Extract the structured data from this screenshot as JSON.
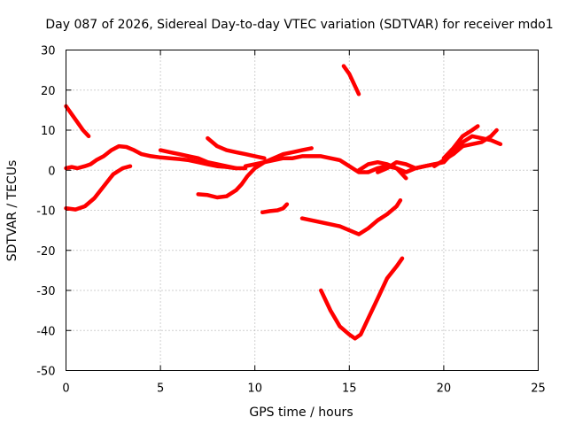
{
  "chart_data": {
    "type": "line",
    "title": "Day 087 of 2026, Sidereal Day-to-day VTEC variation (SDTVAR) for receiver mdo1",
    "xlabel": "GPS time / hours",
    "ylabel": "SDTVAR / TECUs",
    "xlim": [
      0,
      25
    ],
    "ylim": [
      -50,
      30
    ],
    "xticks": [
      0,
      5,
      10,
      15,
      20,
      25
    ],
    "yticks": [
      30,
      20,
      10,
      0,
      -10,
      -20,
      -30,
      -40,
      -50
    ],
    "grid": true,
    "color": "#ff0000",
    "series": [
      {
        "x": [
          0.0,
          0.3,
          0.6,
          0.9,
          1.2
        ],
        "y": [
          16,
          14,
          12,
          10,
          8.5
        ]
      },
      {
        "x": [
          0.0,
          0.3,
          0.6,
          1.0,
          1.3,
          1.6,
          2.0,
          2.4,
          2.8,
          3.2,
          3.6,
          4.0,
          4.5,
          5.0,
          5.5,
          6.0,
          6.5,
          7.0,
          7.5,
          8.0,
          8.5,
          9.0,
          9.5
        ],
        "y": [
          0.5,
          0.8,
          0.5,
          1.0,
          1.5,
          2.5,
          3.5,
          5.0,
          6.0,
          5.8,
          5.0,
          4.0,
          3.5,
          3.2,
          3.0,
          2.8,
          2.5,
          2.0,
          1.5,
          1.0,
          0.8,
          0.5,
          0.5
        ]
      },
      {
        "x": [
          0.0,
          0.5,
          1.0,
          1.5,
          2.0,
          2.5,
          3.0,
          3.4
        ],
        "y": [
          -9.5,
          -9.8,
          -9.0,
          -7.0,
          -4.0,
          -1.0,
          0.5,
          1.0
        ]
      },
      {
        "x": [
          5.0,
          5.5,
          6.0,
          6.5,
          7.0,
          7.5,
          8.0,
          8.5,
          9.0
        ],
        "y": [
          5.0,
          4.5,
          4.0,
          3.5,
          3.0,
          2.0,
          1.5,
          1.0,
          0.5
        ]
      },
      {
        "x": [
          7.5,
          8.0,
          8.5,
          9.0,
          9.5,
          10.0,
          10.5
        ],
        "y": [
          8.0,
          6.0,
          5.0,
          4.5,
          4.0,
          3.5,
          3.0
        ]
      },
      {
        "x": [
          7.0,
          7.5,
          8.0,
          8.5,
          9.0,
          9.3,
          9.6,
          10.0,
          10.5,
          11.0,
          11.5,
          12.0,
          12.5,
          13.0
        ],
        "y": [
          -6.0,
          -6.2,
          -6.8,
          -6.5,
          -5.0,
          -3.5,
          -1.5,
          0.5,
          2.0,
          3.0,
          4.0,
          4.5,
          5.0,
          5.5
        ]
      },
      {
        "x": [
          9.5,
          10.0,
          10.5,
          11.0,
          11.5,
          12.0,
          12.5,
          13.0,
          13.5,
          14.0,
          14.5,
          15.0,
          15.5,
          16.0,
          16.5,
          17.0,
          17.5,
          18.0,
          18.5,
          19.0,
          19.5,
          20.0
        ],
        "y": [
          1.0,
          1.5,
          2.0,
          2.5,
          3.0,
          3.0,
          3.5,
          3.5,
          3.5,
          3.0,
          2.5,
          1.0,
          -0.5,
          -0.5,
          0.5,
          1.0,
          0.5,
          -0.5,
          0.5,
          1.0,
          1.5,
          2.0
        ]
      },
      {
        "x": [
          15.5,
          16.0,
          16.5,
          17.0,
          17.5,
          18.0
        ],
        "y": [
          0.0,
          1.5,
          2.0,
          1.5,
          0.5,
          -2.0
        ]
      },
      {
        "x": [
          16.5,
          17.0,
          17.5,
          18.0,
          18.5,
          19.0,
          19.5
        ],
        "y": [
          -0.5,
          0.5,
          2.0,
          1.5,
          0.5,
          1.0,
          1.5
        ]
      },
      {
        "x": [
          14.7,
          15.0,
          15.3,
          15.5
        ],
        "y": [
          26,
          24,
          21,
          19
        ]
      },
      {
        "x": [
          10.4,
          10.8,
          11.2,
          11.5,
          11.7
        ],
        "y": [
          -10.5,
          -10.2,
          -10.0,
          -9.5,
          -8.5
        ]
      },
      {
        "x": [
          12.5,
          13.0,
          13.5,
          14.0,
          14.5,
          15.0,
          15.5,
          16.0,
          16.5,
          17.0,
          17.5,
          17.7
        ],
        "y": [
          -12.0,
          -12.5,
          -13.0,
          -13.5,
          -14.0,
          -15.0,
          -16.0,
          -14.5,
          -12.5,
          -11.0,
          -9.0,
          -7.5
        ]
      },
      {
        "x": [
          13.5,
          14.0,
          14.5,
          15.0,
          15.3,
          15.6,
          16.0,
          16.5,
          17.0,
          17.5,
          17.8
        ],
        "y": [
          -30,
          -35,
          -39,
          -41,
          -42,
          -41,
          -37,
          -32,
          -27,
          -24,
          -22
        ]
      },
      {
        "x": [
          20.0,
          20.5,
          21.0,
          21.5,
          22.0,
          22.5,
          23.0
        ],
        "y": [
          2.0,
          4.5,
          7.0,
          8.5,
          8.0,
          7.5,
          6.5
        ]
      },
      {
        "x": [
          20.0,
          20.5,
          21.0,
          21.5,
          21.8
        ],
        "y": [
          3.0,
          5.5,
          8.5,
          10.0,
          11.0
        ]
      },
      {
        "x": [
          21.0,
          21.5,
          22.0,
          22.5,
          22.8
        ],
        "y": [
          6.0,
          6.5,
          7.0,
          8.5,
          10.0
        ]
      },
      {
        "x": [
          19.5,
          20.0,
          20.5,
          21.0
        ],
        "y": [
          1.0,
          2.5,
          4.0,
          6.0
        ]
      }
    ]
  }
}
